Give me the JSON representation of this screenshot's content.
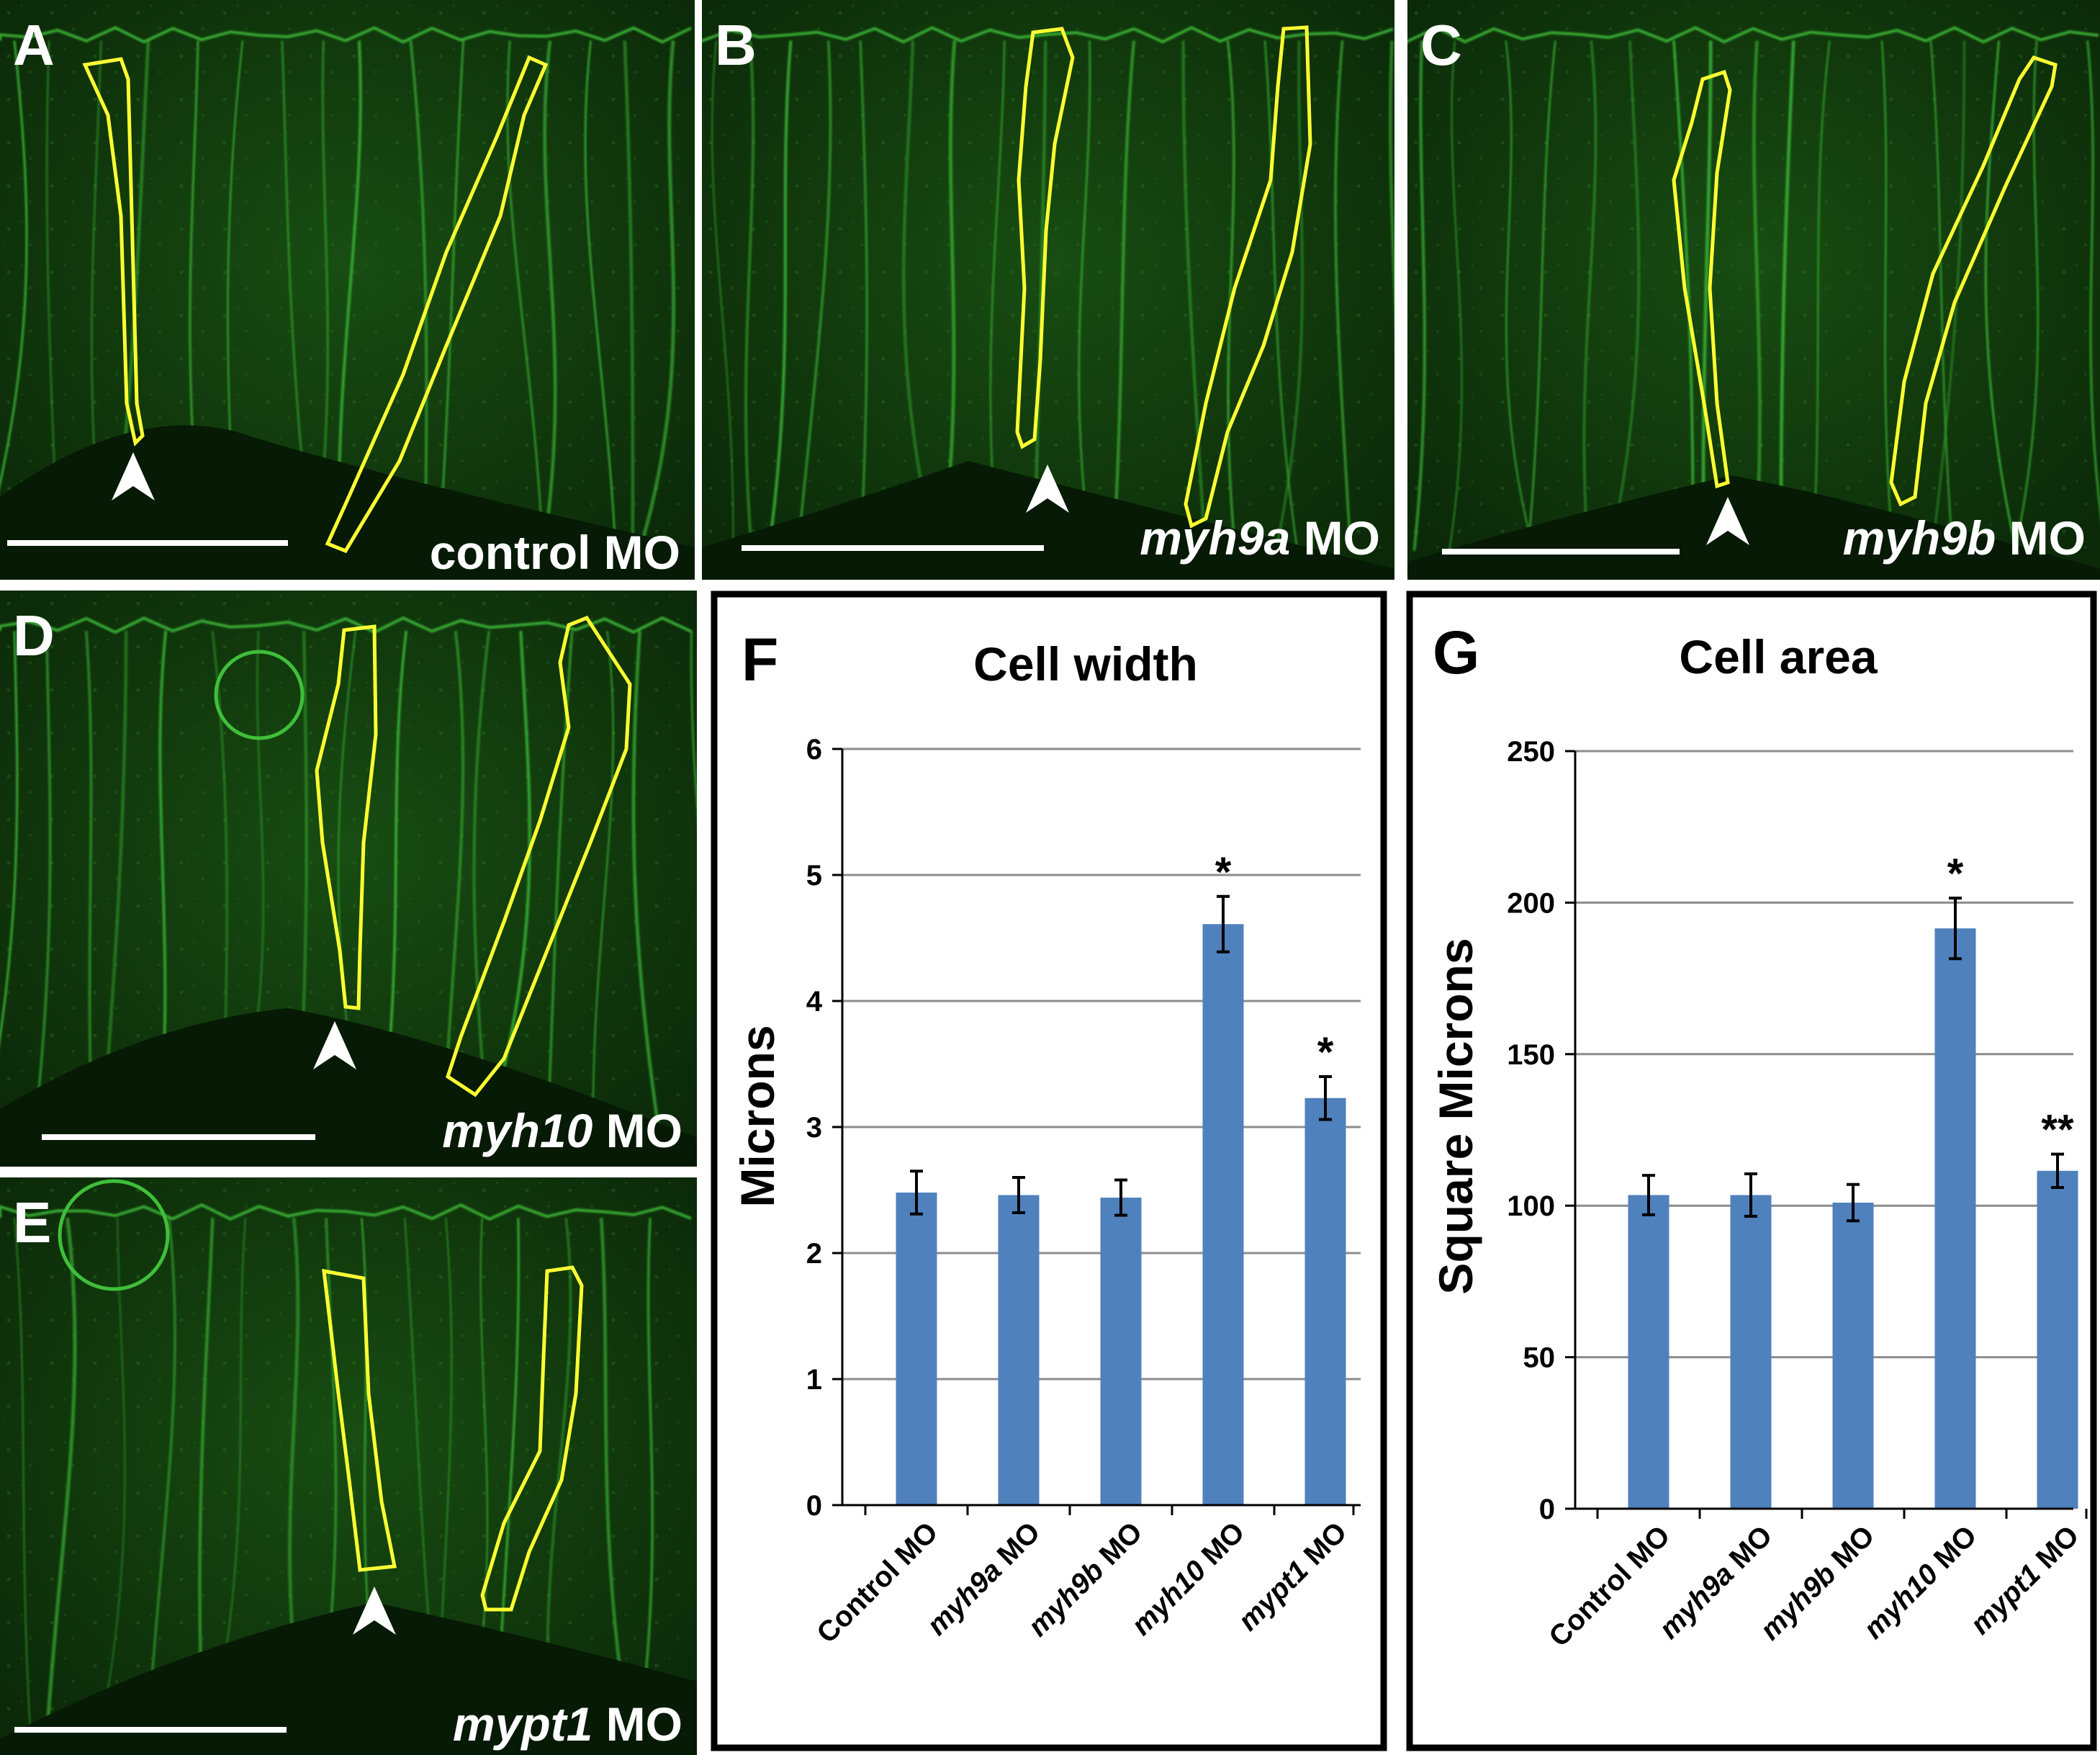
{
  "colors": {
    "bar": "#4f81bd",
    "grid": "#8c8c8c",
    "outline": "#ffff33",
    "micro_bg": "#0a2a08",
    "membrane": "#3fbf3a",
    "text_dark": "#000000",
    "text_light": "#ffffff"
  },
  "panels": [
    {
      "letter": "A",
      "label_plain": "control MO",
      "label_gene": "",
      "label_suffix": ""
    },
    {
      "letter": "B",
      "label_plain": "",
      "label_gene": "myh9a",
      "label_suffix": "MO"
    },
    {
      "letter": "C",
      "label_plain": "",
      "label_gene": "myh9b",
      "label_suffix": "MO"
    },
    {
      "letter": "D",
      "label_plain": "",
      "label_gene": "myh10",
      "label_suffix": "MO"
    },
    {
      "letter": "E",
      "label_plain": "",
      "label_gene": "mypt1",
      "label_suffix": "MO"
    }
  ],
  "chart_data": [
    {
      "type": "bar",
      "panel": "F",
      "title": "Cell width",
      "ylabel": "Microns",
      "xlabel": "",
      "ylim": [
        0,
        6
      ],
      "yticks": [
        "0",
        "1",
        "2",
        "3",
        "4",
        "5",
        "6"
      ],
      "grid": true,
      "categories": [
        {
          "gene": "",
          "plain": "Control MO"
        },
        {
          "gene": "myh9a",
          "plain": " MO"
        },
        {
          "gene": "myh9b",
          "plain": " MO"
        },
        {
          "gene": "myh10",
          "plain": " MO"
        },
        {
          "gene": "mypt1",
          "plain": " MO"
        }
      ],
      "values": [
        2.48,
        2.46,
        2.44,
        4.61,
        3.23
      ],
      "errors": [
        0.17,
        0.14,
        0.14,
        0.22,
        0.17
      ],
      "annotations": [
        "",
        "",
        "",
        "*",
        "*"
      ]
    },
    {
      "type": "bar",
      "panel": "G",
      "title": "Cell area",
      "ylabel": "Square Microns",
      "xlabel": "",
      "ylim": [
        0,
        250
      ],
      "yticks": [
        "0",
        "50",
        "100",
        "150",
        "200",
        "250"
      ],
      "grid": true,
      "categories": [
        {
          "gene": "",
          "plain": "Control MO"
        },
        {
          "gene": "myh9a",
          "plain": " MO"
        },
        {
          "gene": "myh9b",
          "plain": " MO"
        },
        {
          "gene": "myh10",
          "plain": " MO"
        },
        {
          "gene": "mypt1",
          "plain": " MO"
        }
      ],
      "values": [
        103.5,
        103.5,
        101.0,
        191.5,
        111.5
      ],
      "errors": [
        6.5,
        7.0,
        6.0,
        10.0,
        5.5
      ],
      "annotations": [
        "",
        "",
        "",
        "*",
        "**"
      ]
    }
  ]
}
